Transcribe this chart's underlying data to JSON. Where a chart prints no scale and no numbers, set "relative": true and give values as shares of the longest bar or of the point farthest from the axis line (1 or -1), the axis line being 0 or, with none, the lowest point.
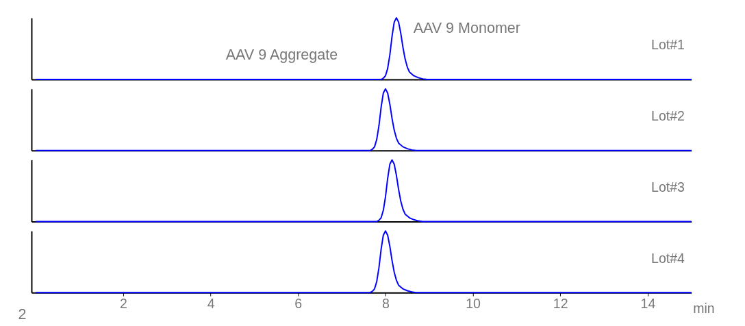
{
  "chart_data": [
    {
      "type": "line",
      "title": "Lot#1",
      "relative": true,
      "xlim": [
        -0.1,
        15
      ],
      "xticks": [
        2,
        4,
        6,
        8,
        10,
        12,
        14
      ],
      "tick_labels": false,
      "marker": "none",
      "line_style": "solid",
      "annotations": [
        "AAV 9 Monomer",
        "AAV 9 Aggregate"
      ],
      "series": [
        {
          "color": "#0000ff",
          "x": [
            0,
            7.9,
            7.95,
            8.0,
            8.05,
            8.1,
            8.15,
            8.2,
            8.25,
            8.3,
            8.35,
            8.4,
            8.45,
            8.5,
            8.55,
            8.65,
            8.75,
            8.85,
            8.95,
            15
          ],
          "values": [
            0,
            0,
            0.02,
            0.06,
            0.18,
            0.4,
            0.7,
            0.93,
            1,
            0.93,
            0.75,
            0.52,
            0.33,
            0.2,
            0.12,
            0.06,
            0.03,
            0.01,
            0,
            0
          ]
        }
      ]
    },
    {
      "type": "line",
      "title": "Lot#2",
      "relative": true,
      "xlim": [
        -0.1,
        15
      ],
      "xticks": [
        2,
        4,
        6,
        8,
        10,
        12,
        14
      ],
      "tick_labels": false,
      "marker": "none",
      "line_style": "solid",
      "series": [
        {
          "color": "#0000ff",
          "x": [
            0,
            7.65,
            7.7,
            7.75,
            7.8,
            7.85,
            7.9,
            7.95,
            8.0,
            8.05,
            8.1,
            8.15,
            8.2,
            8.25,
            8.3,
            8.4,
            8.5,
            8.6,
            8.7,
            15
          ],
          "values": [
            0,
            0,
            0.02,
            0.06,
            0.18,
            0.4,
            0.7,
            0.93,
            1,
            0.93,
            0.75,
            0.52,
            0.33,
            0.2,
            0.12,
            0.06,
            0.03,
            0.01,
            0,
            0
          ]
        }
      ]
    },
    {
      "type": "line",
      "title": "Lot#3",
      "relative": true,
      "xlim": [
        -0.1,
        15
      ],
      "xticks": [
        2,
        4,
        6,
        8,
        10,
        12,
        14
      ],
      "tick_labels": false,
      "marker": "none",
      "line_style": "solid",
      "series": [
        {
          "color": "#0000ff",
          "x": [
            0,
            7.8,
            7.85,
            7.9,
            7.95,
            8.0,
            8.05,
            8.1,
            8.15,
            8.2,
            8.25,
            8.3,
            8.35,
            8.4,
            8.45,
            8.55,
            8.65,
            8.75,
            8.85,
            15
          ],
          "values": [
            0,
            0,
            0.02,
            0.06,
            0.18,
            0.4,
            0.7,
            0.93,
            1,
            0.93,
            0.75,
            0.52,
            0.33,
            0.2,
            0.12,
            0.06,
            0.03,
            0.01,
            0,
            0
          ]
        }
      ]
    },
    {
      "type": "line",
      "title": "Lot#4",
      "relative": true,
      "xlim": [
        -0.1,
        15
      ],
      "xticks": [
        2,
        4,
        6,
        8,
        10,
        12,
        14
      ],
      "tick_labels": "x",
      "xlabel": "min",
      "marker": "none",
      "line_style": "solid",
      "annotations": [
        "2"
      ],
      "series": [
        {
          "color": "#0000ff",
          "x": [
            0,
            7.65,
            7.7,
            7.75,
            7.8,
            7.85,
            7.9,
            7.95,
            8.0,
            8.05,
            8.1,
            8.15,
            8.2,
            8.25,
            8.3,
            8.4,
            8.5,
            8.6,
            8.7,
            15
          ],
          "values": [
            0,
            0,
            0.02,
            0.06,
            0.18,
            0.4,
            0.7,
            0.93,
            1,
            0.93,
            0.75,
            0.52,
            0.33,
            0.2,
            0.12,
            0.06,
            0.03,
            0.01,
            0,
            0
          ]
        }
      ]
    }
  ]
}
